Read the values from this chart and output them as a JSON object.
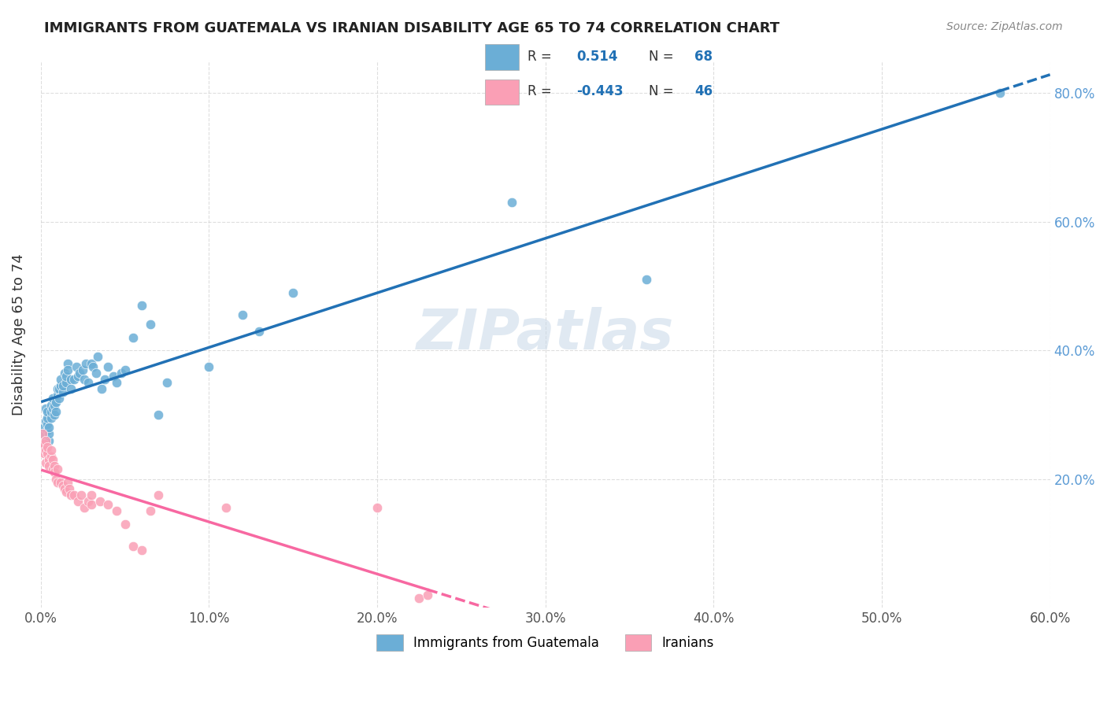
{
  "title": "IMMIGRANTS FROM GUATEMALA VS IRANIAN DISABILITY AGE 65 TO 74 CORRELATION CHART",
  "source": "Source: ZipAtlas.com",
  "xlabel": "",
  "ylabel": "Disability Age 65 to 74",
  "xlim": [
    0.0,
    0.6
  ],
  "ylim": [
    0.0,
    0.85
  ],
  "xtick_labels": [
    "0.0%",
    "10.0%",
    "20.0%",
    "30.0%",
    "40.0%",
    "50.0%",
    "60.0%"
  ],
  "xtick_values": [
    0.0,
    0.1,
    0.2,
    0.3,
    0.4,
    0.5,
    0.6
  ],
  "ytick_labels": [
    "20.0%",
    "40.0%",
    "60.0%",
    "80.0%"
  ],
  "ytick_values": [
    0.2,
    0.4,
    0.6,
    0.8
  ],
  "blue_R": 0.514,
  "blue_N": 68,
  "pink_R": -0.443,
  "pink_N": 46,
  "blue_color": "#6baed6",
  "pink_color": "#fa9fb5",
  "blue_line_color": "#2171b5",
  "pink_line_color": "#f768a1",
  "legend_label_blue": "Immigrants from Guatemala",
  "legend_label_pink": "Iranians",
  "watermark": "ZIPatlas",
  "blue_scatter_x": [
    0.001,
    0.002,
    0.002,
    0.003,
    0.003,
    0.003,
    0.004,
    0.004,
    0.004,
    0.004,
    0.005,
    0.005,
    0.005,
    0.006,
    0.006,
    0.006,
    0.007,
    0.007,
    0.008,
    0.008,
    0.009,
    0.009,
    0.01,
    0.01,
    0.011,
    0.011,
    0.012,
    0.012,
    0.013,
    0.013,
    0.014,
    0.015,
    0.015,
    0.016,
    0.016,
    0.018,
    0.018,
    0.02,
    0.021,
    0.022,
    0.023,
    0.025,
    0.026,
    0.027,
    0.028,
    0.03,
    0.031,
    0.033,
    0.034,
    0.036,
    0.038,
    0.04,
    0.043,
    0.045,
    0.048,
    0.05,
    0.055,
    0.06,
    0.065,
    0.07,
    0.075,
    0.1,
    0.12,
    0.13,
    0.15,
    0.28,
    0.36,
    0.57
  ],
  "blue_scatter_y": [
    0.27,
    0.25,
    0.28,
    0.26,
    0.29,
    0.31,
    0.275,
    0.285,
    0.295,
    0.305,
    0.26,
    0.27,
    0.28,
    0.295,
    0.305,
    0.315,
    0.31,
    0.325,
    0.3,
    0.315,
    0.305,
    0.32,
    0.33,
    0.34,
    0.325,
    0.34,
    0.345,
    0.355,
    0.335,
    0.345,
    0.365,
    0.35,
    0.36,
    0.38,
    0.37,
    0.355,
    0.34,
    0.355,
    0.375,
    0.36,
    0.365,
    0.37,
    0.355,
    0.38,
    0.35,
    0.38,
    0.375,
    0.365,
    0.39,
    0.34,
    0.355,
    0.375,
    0.36,
    0.35,
    0.365,
    0.37,
    0.42,
    0.47,
    0.44,
    0.3,
    0.35,
    0.375,
    0.455,
    0.43,
    0.49,
    0.63,
    0.51,
    0.8
  ],
  "pink_scatter_x": [
    0.001,
    0.001,
    0.002,
    0.002,
    0.003,
    0.003,
    0.003,
    0.004,
    0.004,
    0.005,
    0.005,
    0.006,
    0.006,
    0.007,
    0.007,
    0.008,
    0.008,
    0.009,
    0.01,
    0.01,
    0.012,
    0.013,
    0.014,
    0.015,
    0.016,
    0.017,
    0.018,
    0.02,
    0.022,
    0.024,
    0.026,
    0.028,
    0.03,
    0.03,
    0.035,
    0.04,
    0.045,
    0.05,
    0.055,
    0.06,
    0.065,
    0.07,
    0.11,
    0.2,
    0.225,
    0.23
  ],
  "pink_scatter_y": [
    0.27,
    0.25,
    0.24,
    0.255,
    0.245,
    0.26,
    0.225,
    0.24,
    0.25,
    0.23,
    0.22,
    0.235,
    0.245,
    0.215,
    0.23,
    0.22,
    0.21,
    0.2,
    0.215,
    0.195,
    0.195,
    0.19,
    0.185,
    0.18,
    0.195,
    0.185,
    0.175,
    0.175,
    0.165,
    0.175,
    0.155,
    0.165,
    0.16,
    0.175,
    0.165,
    0.16,
    0.15,
    0.13,
    0.095,
    0.09,
    0.15,
    0.175,
    0.155,
    0.155,
    0.015,
    0.02
  ]
}
